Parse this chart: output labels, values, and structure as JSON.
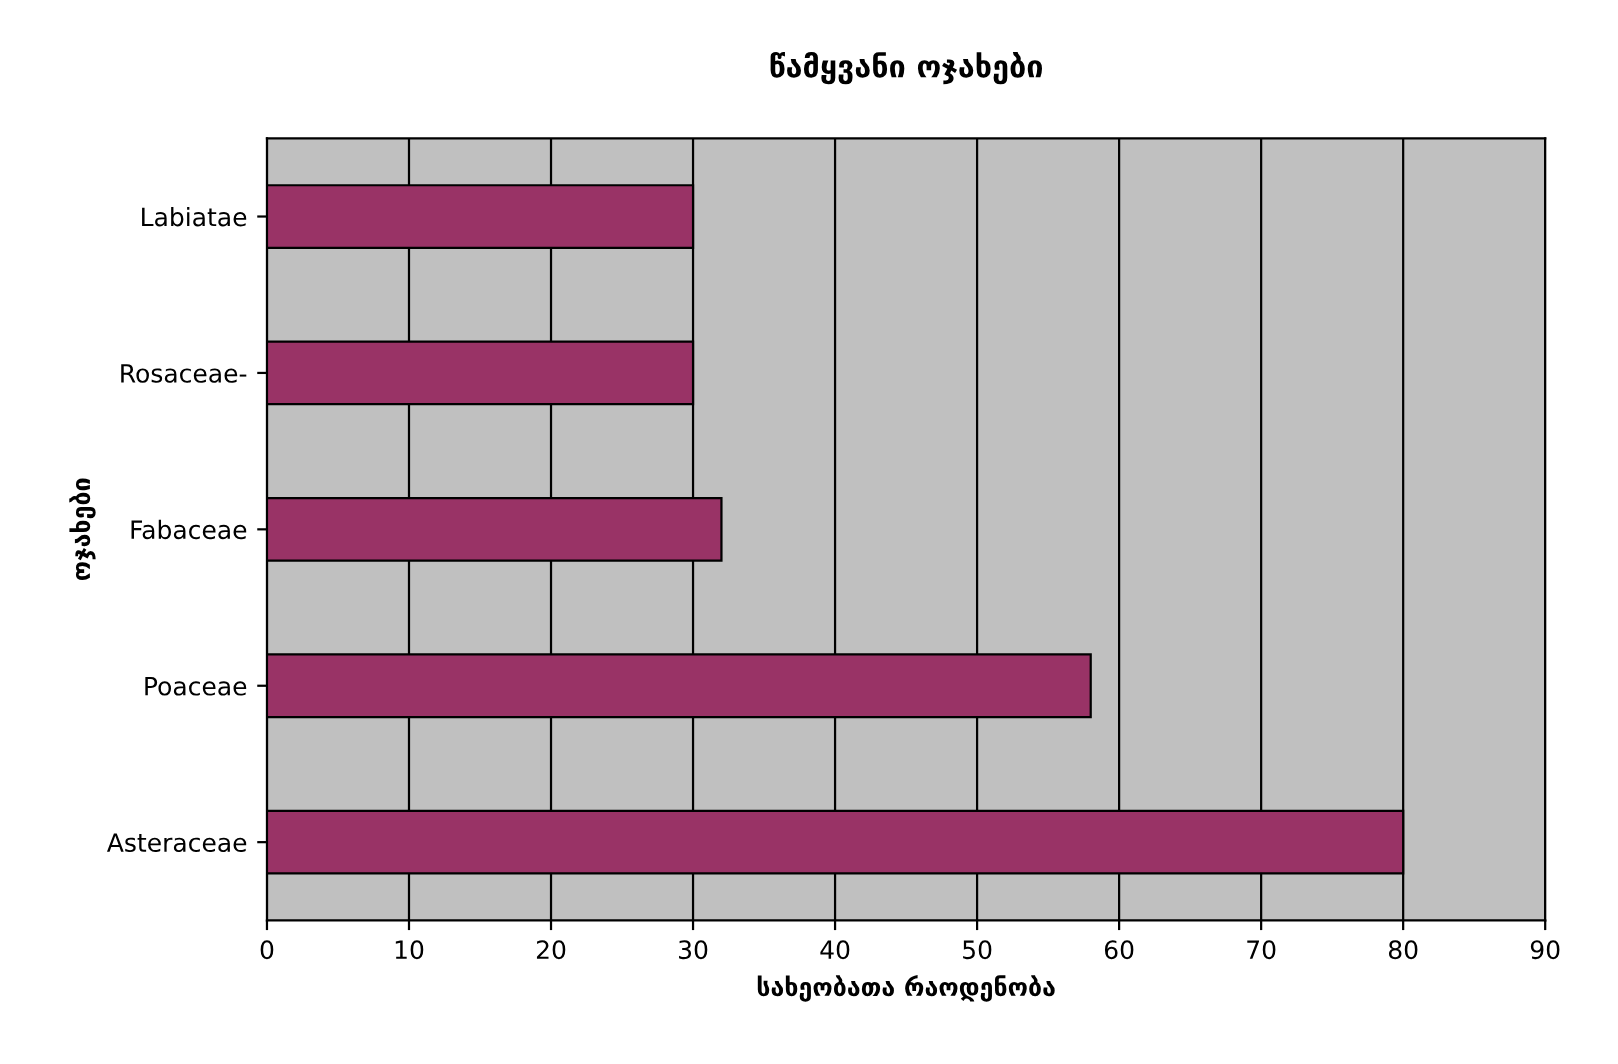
{
  "chart_data": {
    "type": "bar",
    "orientation": "horizontal",
    "title": "წამყვანი ოჯახები",
    "xlabel": "სახეობათა რაოდენობა",
    "ylabel": "ოჯახები",
    "categories": [
      "Labiatae",
      "Rosaceae-",
      "Fabaceae",
      "Poaceae",
      "Asteraceae"
    ],
    "values": [
      30,
      30,
      32,
      58,
      80
    ],
    "color": "#993366",
    "xlim": [
      0,
      90
    ],
    "xticks": [
      0,
      10,
      20,
      30,
      40,
      50,
      60,
      70,
      80,
      90
    ],
    "grid": "x",
    "legend": false
  }
}
